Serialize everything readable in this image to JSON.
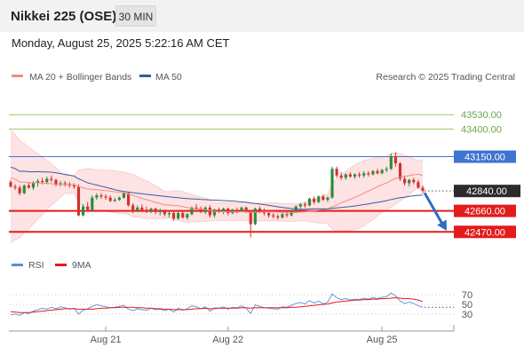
{
  "header": {
    "title": "Nikkei 225 (OSE)",
    "interval": "30 MIN",
    "datetime": "Monday, August 25, 2025 5:22:16 AM CET"
  },
  "legend": {
    "ma20_label": "MA 20 + Bollinger Bands",
    "ma50_label": "MA 50",
    "copyright": "Research © 2025 Trading Central",
    "rsi_label": "RSI",
    "rsi_ma_label": "9MA"
  },
  "colors": {
    "ma20": "#f28b82",
    "ma50": "#3a5ba0",
    "band_fill": "#fde3e3",
    "resistance_green": "#9ccc65",
    "resistance_blue": "#3f74d0",
    "support_red": "#e31b1b",
    "candle_up": "#2e8b3a",
    "candle_down": "#d62f2f",
    "arrow": "#2f6bbf",
    "current_price_bg": "#2b2b2b",
    "rsi": "#5b8fd6",
    "rsi_ma": "#e31b1b"
  },
  "chart_data": [
    {
      "type": "candlestick",
      "title": "Nikkei 225 (OSE)",
      "timeframe": "30 MIN",
      "x_ticks": [
        "Aug 21",
        "Aug 22",
        "Aug 25"
      ],
      "ylim": [
        42400,
        43620
      ],
      "series": [
        {
          "name": "MA 20 + Bollinger Bands",
          "note": "MA 20 with upper and lower bands"
        },
        {
          "name": "MA 50"
        }
      ],
      "levels": [
        {
          "value": 43530.0,
          "label": "43530.00",
          "kind": "resistance",
          "color": "#9ccc65"
        },
        {
          "value": 43400.0,
          "label": "43400.00",
          "kind": "resistance",
          "color": "#9ccc65"
        },
        {
          "value": 43150.0,
          "label": "43150.00",
          "kind": "resistance",
          "color": "#3f74d0"
        },
        {
          "value": 42660.0,
          "label": "42660.00",
          "kind": "support",
          "color": "#e31b1b"
        },
        {
          "value": 42470.0,
          "label": "42470.00",
          "kind": "support",
          "color": "#e31b1b"
        }
      ],
      "current_price": {
        "value": 42840.0,
        "label": "42840.00"
      },
      "projection": {
        "from": 42840,
        "to": 42480,
        "direction": "down"
      },
      "candles": [
        [
          42920,
          42940,
          42870,
          42880
        ],
        [
          42880,
          42900,
          42850,
          42870
        ],
        [
          42870,
          42890,
          42800,
          42820
        ],
        [
          42820,
          42900,
          42810,
          42890
        ],
        [
          42890,
          42920,
          42860,
          42870
        ],
        [
          42870,
          42930,
          42850,
          42910
        ],
        [
          42910,
          42950,
          42880,
          42930
        ],
        [
          42930,
          42960,
          42900,
          42920
        ],
        [
          42920,
          42970,
          42900,
          42950
        ],
        [
          42950,
          42980,
          42920,
          42940
        ],
        [
          42940,
          42950,
          42880,
          42900
        ],
        [
          42900,
          42930,
          42880,
          42910
        ],
        [
          42910,
          42930,
          42880,
          42900
        ],
        [
          42900,
          42920,
          42870,
          42890
        ],
        [
          42890,
          42910,
          42860,
          42880
        ],
        [
          42880,
          42900,
          42610,
          42620
        ],
        [
          42620,
          42720,
          42610,
          42700
        ],
        [
          42700,
          42740,
          42660,
          42670
        ],
        [
          42670,
          42800,
          42660,
          42780
        ],
        [
          42780,
          42820,
          42760,
          42800
        ],
        [
          42800,
          42820,
          42770,
          42790
        ],
        [
          42790,
          42810,
          42760,
          42780
        ],
        [
          42780,
          42800,
          42740,
          42750
        ],
        [
          42750,
          42780,
          42740,
          42760
        ],
        [
          42760,
          42790,
          42750,
          42780
        ],
        [
          42780,
          42830,
          42770,
          42820
        ],
        [
          42820,
          42830,
          42700,
          42710
        ],
        [
          42710,
          42730,
          42640,
          42660
        ],
        [
          42660,
          42710,
          42650,
          42690
        ],
        [
          42690,
          42720,
          42660,
          42670
        ],
        [
          42670,
          42700,
          42640,
          42660
        ],
        [
          42660,
          42690,
          42640,
          42680
        ],
        [
          42680,
          42690,
          42630,
          42650
        ],
        [
          42650,
          42680,
          42620,
          42660
        ],
        [
          42660,
          42670,
          42610,
          42630
        ],
        [
          42630,
          42660,
          42600,
          42640
        ],
        [
          42640,
          42660,
          42570,
          42590
        ],
        [
          42590,
          42650,
          42580,
          42640
        ],
        [
          42640,
          42660,
          42590,
          42600
        ],
        [
          42600,
          42640,
          42580,
          42630
        ],
        [
          42630,
          42700,
          42620,
          42690
        ],
        [
          42690,
          42720,
          42670,
          42680
        ],
        [
          42680,
          42700,
          42640,
          42650
        ],
        [
          42650,
          42700,
          42630,
          42690
        ],
        [
          42690,
          42710,
          42600,
          42620
        ],
        [
          42620,
          42680,
          42600,
          42670
        ],
        [
          42670,
          42690,
          42640,
          42660
        ],
        [
          42660,
          42690,
          42630,
          42680
        ],
        [
          42680,
          42690,
          42620,
          42640
        ],
        [
          42640,
          42680,
          42630,
          42670
        ],
        [
          42670,
          42690,
          42640,
          42660
        ],
        [
          42660,
          42700,
          42650,
          42690
        ],
        [
          42690,
          42700,
          42640,
          42650
        ],
        [
          42650,
          42660,
          42420,
          42540
        ],
        [
          42540,
          42690,
          42530,
          42680
        ],
        [
          42680,
          42700,
          42640,
          42660
        ],
        [
          42660,
          42680,
          42620,
          42640
        ],
        [
          42640,
          42660,
          42600,
          42620
        ],
        [
          42620,
          42640,
          42590,
          42610
        ],
        [
          42610,
          42630,
          42580,
          42600
        ],
        [
          42600,
          42640,
          42590,
          42630
        ],
        [
          42630,
          42650,
          42600,
          42620
        ],
        [
          42620,
          42670,
          42610,
          42660
        ],
        [
          42660,
          42710,
          42650,
          42700
        ],
        [
          42700,
          42730,
          42680,
          42720
        ],
        [
          42720,
          42740,
          42690,
          42710
        ],
        [
          42710,
          42780,
          42700,
          42770
        ],
        [
          42770,
          42790,
          42720,
          42740
        ],
        [
          42740,
          42800,
          42730,
          42790
        ],
        [
          42790,
          42810,
          42750,
          42760
        ],
        [
          42760,
          42790,
          42740,
          42780
        ],
        [
          42780,
          43060,
          42770,
          43040
        ],
        [
          43040,
          43060,
          42960,
          42980
        ],
        [
          42980,
          43010,
          42940,
          42960
        ],
        [
          42960,
          43000,
          42940,
          42990
        ],
        [
          42990,
          43010,
          42960,
          42970
        ],
        [
          42970,
          43000,
          42950,
          42990
        ],
        [
          42990,
          43010,
          42960,
          42980
        ],
        [
          42980,
          43020,
          42960,
          43000
        ],
        [
          43000,
          43020,
          42970,
          42990
        ],
        [
          42990,
          43030,
          42980,
          43020
        ],
        [
          43020,
          43040,
          42990,
          43000
        ],
        [
          43000,
          43040,
          42990,
          43030
        ],
        [
          43030,
          43060,
          43010,
          43040
        ],
        [
          43040,
          43180,
          43030,
          43150
        ],
        [
          43150,
          43190,
          43060,
          43090
        ],
        [
          43090,
          43100,
          42930,
          42950
        ],
        [
          42950,
          42980,
          42890,
          42910
        ],
        [
          42910,
          42950,
          42880,
          42940
        ],
        [
          42940,
          42960,
          42900,
          42920
        ],
        [
          42920,
          42940,
          42860,
          42870
        ],
        [
          42870,
          42890,
          42820,
          42840
        ]
      ]
    },
    {
      "type": "line",
      "title": "RSI",
      "series": [
        {
          "name": "RSI"
        },
        {
          "name": "9MA"
        }
      ],
      "y_ticks": [
        70,
        50,
        30
      ],
      "rsi": [
        28,
        30,
        27,
        33,
        31,
        36,
        39,
        42,
        40,
        44,
        41,
        45,
        43,
        40,
        42,
        30,
        38,
        41,
        46,
        49,
        47,
        45,
        43,
        44,
        46,
        48,
        40,
        37,
        41,
        39,
        38,
        42,
        39,
        40,
        37,
        40,
        34,
        42,
        38,
        41,
        47,
        45,
        41,
        45,
        36,
        43,
        42,
        45,
        40,
        44,
        43,
        47,
        42,
        31,
        49,
        46,
        43,
        42,
        41,
        40,
        45,
        44,
        48,
        52,
        54,
        51,
        58,
        53,
        57,
        51,
        55,
        72,
        64,
        60,
        62,
        59,
        61,
        60,
        63,
        61,
        64,
        62,
        65,
        66,
        74,
        68,
        57,
        52,
        55,
        52,
        47,
        44
      ],
      "rsi_ma": [
        35,
        34,
        33,
        33,
        33,
        34,
        35,
        36,
        37,
        38,
        39,
        40,
        41,
        41,
        41,
        40,
        40,
        40,
        40,
        41,
        42,
        42,
        43,
        43,
        44,
        44,
        44,
        44,
        43,
        43,
        42,
        42,
        41,
        41,
        40,
        40,
        39,
        39,
        39,
        39,
        40,
        41,
        41,
        42,
        41,
        41,
        42,
        42,
        42,
        42,
        42,
        43,
        43,
        42,
        43,
        43,
        43,
        43,
        43,
        43,
        43,
        43,
        44,
        44,
        45,
        46,
        47,
        48,
        49,
        50,
        51,
        53,
        55,
        56,
        57,
        58,
        59,
        59,
        60,
        60,
        61,
        61,
        62,
        62,
        63,
        64,
        63,
        62,
        62,
        61,
        59,
        56
      ]
    }
  ]
}
